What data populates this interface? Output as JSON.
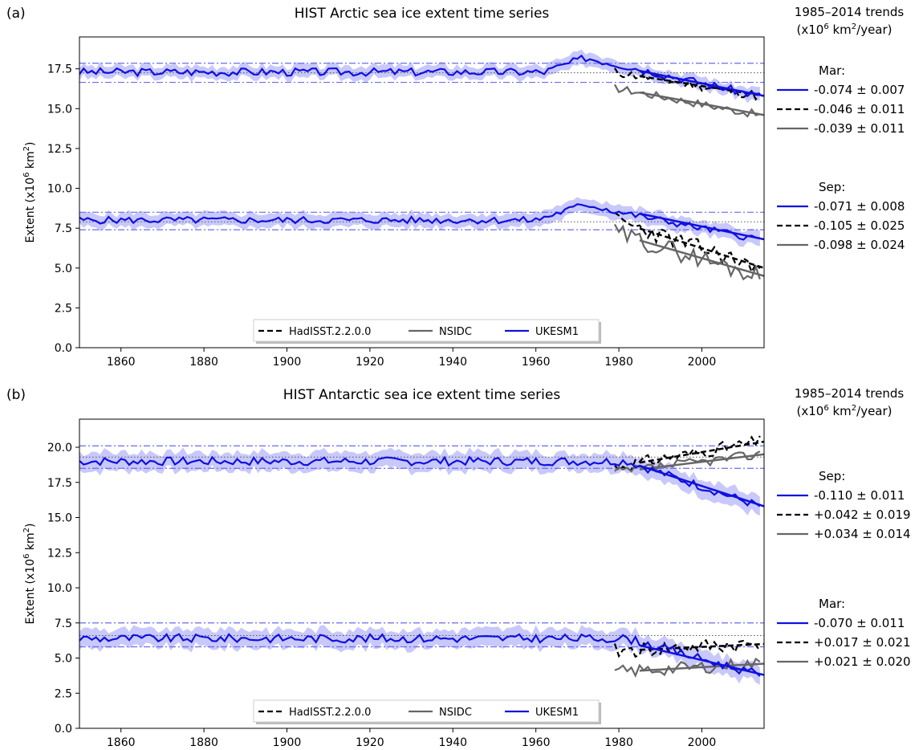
{
  "chart_data": [
    {
      "type": "line",
      "panel_label": "(a)",
      "title": "HIST Arctic sea ice extent time series",
      "ylabel": "Extent (x10",
      "ylabel_sup": "6",
      "ylabel_tail": " km",
      "ylabel_sup2": "2",
      "ylabel_end": ")",
      "xlim": [
        1850,
        2015
      ],
      "ylim": [
        0,
        19.5
      ],
      "xticks": [
        1860,
        1880,
        1900,
        1920,
        1940,
        1960,
        1980,
        2000
      ],
      "xtick_labels": [
        "1860",
        "1880",
        "1900",
        "1920",
        "1940",
        "1960",
        "1980",
        "2000"
      ],
      "yticks": [
        0,
        2.5,
        5,
        7.5,
        10,
        12.5,
        15,
        17.5
      ],
      "ytick_labels": [
        "0.0",
        "2.5",
        "5.0",
        "7.5",
        "10.0",
        "12.5",
        "15.0",
        "17.5"
      ],
      "colors": {
        "model": "#1010e0",
        "band": "#c8c8fa",
        "ref": "#6a6af0",
        "hadisst": "#000000",
        "nsidc": "#666666"
      },
      "legend": [
        "HadISST.2.2.0.0",
        "NSIDC",
        "UKESM1"
      ],
      "legend_placement": "bottom-center",
      "trend_header": [
        "1985–2014 trends",
        "(x10",
        "6",
        " km",
        "2",
        "/year)"
      ],
      "groups": [
        {
          "month": "Mar:",
          "trends": [
            "-0.074 ± 0.007",
            "-0.046 ± 0.011",
            "-0.039 ± 0.011"
          ],
          "model": {
            "base": 17.3,
            "rise_start": 1962,
            "rise_peak": 1972,
            "rise_amp": 0.9,
            "end_value": 15.8,
            "noise": 0.25,
            "spread": 0.45,
            "seed": 3
          },
          "ref_lines": {
            "upper": 17.85,
            "mid": 17.25,
            "lower": 16.65
          },
          "obs": [
            {
              "source": "hadisst",
              "start": 1979,
              "start_value": 17.3,
              "end_value": 15.8,
              "noise": 0.3,
              "seed": 11
            },
            {
              "source": "nsidc",
              "start": 1979,
              "start_value": 16.3,
              "end_value": 14.6,
              "noise": 0.25,
              "seed": 17
            }
          ],
          "trend_fit": {
            "from": 1985,
            "to": 2014
          }
        },
        {
          "month": "Sep:",
          "trends": [
            "-0.071 ± 0.008",
            "-0.105 ± 0.025",
            "-0.098 ± 0.024"
          ],
          "model": {
            "base": 8.0,
            "rise_start": 1960,
            "rise_peak": 1972,
            "rise_amp": 1.0,
            "end_value": 6.8,
            "noise": 0.22,
            "spread": 0.5,
            "seed": 5
          },
          "ref_lines": {
            "upper": 8.5,
            "mid": 7.9,
            "lower": 7.4
          },
          "obs": [
            {
              "source": "hadisst",
              "start": 1979,
              "start_value": 8.0,
              "end_value": 5.0,
              "noise": 0.55,
              "seed": 23
            },
            {
              "source": "nsidc",
              "start": 1979,
              "start_value": 7.2,
              "end_value": 4.5,
              "noise": 0.6,
              "seed": 29
            }
          ],
          "trend_fit": {
            "from": 1985,
            "to": 2014
          }
        }
      ]
    },
    {
      "type": "line",
      "panel_label": "(b)",
      "title": "HIST Antarctic sea ice extent time series",
      "ylabel": "Extent (x10",
      "ylabel_sup": "6",
      "ylabel_tail": " km",
      "ylabel_sup2": "2",
      "ylabel_end": ")",
      "xlim": [
        1850,
        2015
      ],
      "ylim": [
        0,
        22
      ],
      "xticks": [
        1860,
        1880,
        1900,
        1920,
        1940,
        1960,
        1980,
        2000
      ],
      "xtick_labels": [
        "1860",
        "1880",
        "1900",
        "1920",
        "1940",
        "1960",
        "1980",
        "2000"
      ],
      "yticks": [
        0,
        2.5,
        5,
        7.5,
        10,
        12.5,
        15,
        17.5,
        20
      ],
      "ytick_labels": [
        "0.0",
        "2.5",
        "5.0",
        "7.5",
        "10.0",
        "12.5",
        "15.0",
        "17.5",
        "20.0"
      ],
      "colors": {
        "model": "#1010e0",
        "band": "#c8c8fa",
        "ref": "#6a6af0",
        "hadisst": "#000000",
        "nsidc": "#666666"
      },
      "legend": [
        "HadISST.2.2.0.0",
        "NSIDC",
        "UKESM1"
      ],
      "legend_placement": "bottom-center",
      "trend_header": [
        "1985–2014 trends",
        "(x10",
        "6",
        " km",
        "2",
        "/year)"
      ],
      "groups": [
        {
          "month": "Sep:",
          "trends": [
            "-0.110 ± 0.011",
            "+0.042 ± 0.019",
            "+0.034 ± 0.014"
          ],
          "model": {
            "base": 19.0,
            "rise_start": 1850,
            "rise_peak": 1850,
            "rise_amp": 0.0,
            "end_value": 15.8,
            "noise": 0.3,
            "spread": 0.75,
            "seed": 7
          },
          "ref_lines": {
            "upper": 20.1,
            "mid": 19.3,
            "lower": 18.5
          },
          "obs": [
            {
              "source": "hadisst",
              "start": 1979,
              "start_value": 18.6,
              "end_value": 20.4,
              "noise": 0.45,
              "seed": 31
            },
            {
              "source": "nsidc",
              "start": 1979,
              "start_value": 18.2,
              "end_value": 19.5,
              "noise": 0.35,
              "seed": 37
            }
          ],
          "trend_fit": {
            "from": 1985,
            "to": 2014
          }
        },
        {
          "month": "Mar:",
          "trends": [
            "-0.070 ± 0.011",
            "+0.017 ± 0.021",
            "+0.021 ± 0.020"
          ],
          "model": {
            "base": 6.4,
            "rise_start": 1850,
            "rise_peak": 1850,
            "rise_amp": 0.0,
            "end_value": 3.8,
            "noise": 0.3,
            "spread": 0.75,
            "seed": 9
          },
          "ref_lines": {
            "upper": 7.5,
            "mid": 6.6,
            "lower": 5.8
          },
          "obs": [
            {
              "source": "hadisst",
              "start": 1979,
              "start_value": 5.5,
              "end_value": 6.0,
              "noise": 0.55,
              "seed": 41
            },
            {
              "source": "nsidc",
              "start": 1979,
              "start_value": 4.0,
              "end_value": 4.6,
              "noise": 0.45,
              "seed": 43
            }
          ],
          "trend_fit": {
            "from": 1985,
            "to": 2014
          }
        }
      ]
    }
  ]
}
